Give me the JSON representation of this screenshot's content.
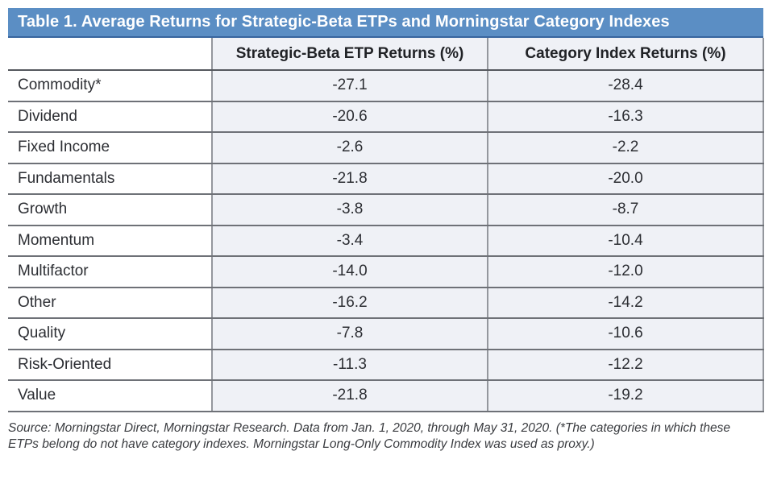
{
  "chart_data": {
    "type": "table",
    "title": "Table 1. Average Returns for Strategic-Beta ETPs and Morningstar Category Indexes",
    "columns": [
      "",
      "Strategic-Beta ETP Returns (%)",
      "Category Index Returns (%)"
    ],
    "categories": [
      "Commodity*",
      "Dividend",
      "Fixed Income",
      "Fundamentals",
      "Growth",
      "Momentum",
      "Multifactor",
      "Other",
      "Quality",
      "Risk-Oriented",
      "Value"
    ],
    "series": [
      {
        "name": "Strategic-Beta ETP Returns (%)",
        "values": [
          -27.1,
          -20.6,
          -2.6,
          -21.8,
          -3.8,
          -3.4,
          -14.0,
          -16.2,
          -7.8,
          -11.3,
          -21.8
        ]
      },
      {
        "name": "Category Index Returns (%)",
        "values": [
          -28.4,
          -16.3,
          -2.2,
          -20.0,
          -8.7,
          -10.4,
          -12.0,
          -14.2,
          -10.6,
          -12.2,
          -19.2
        ]
      }
    ],
    "value_decimals": 1,
    "source_note": "Source: Morningstar Direct, Morningstar Research. Data from Jan. 1, 2020, through May 31, 2020. (*The categories in which these ETPs belong do not have category indexes. Morningstar Long-Only Commodity Index was used as proxy.)"
  },
  "colors": {
    "title_bar_bg": "#5b8ec4",
    "title_bar_border": "#38659e",
    "title_text": "#ffffff",
    "value_cell_bg": "#eff1f6",
    "row_line": "#6e7177",
    "header_line": "#55585e",
    "column_line": "#94979d",
    "body_text": "#2c2e33",
    "note_text": "#3a3c40"
  }
}
